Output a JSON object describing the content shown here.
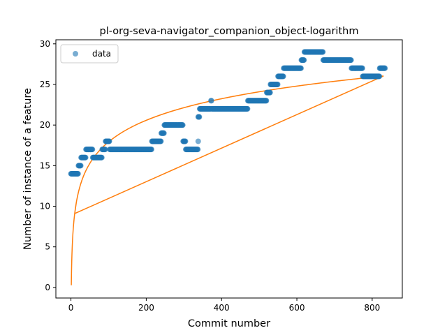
{
  "chart_data": {
    "type": "scatter",
    "title": "pl-org-seva-navigator_companion_object-logarithm",
    "xlabel": "Commit number",
    "ylabel": "Number of instance of a feature",
    "xlim": [
      -40,
      880
    ],
    "ylim": [
      -1.3,
      30.5
    ],
    "xticks": [
      0,
      200,
      400,
      600,
      800
    ],
    "yticks": [
      0,
      5,
      10,
      15,
      20,
      25,
      30
    ],
    "grid": false,
    "legend": {
      "placement": "top-left",
      "entries": [
        "data"
      ]
    },
    "series": [
      {
        "name": "data",
        "kind": "points",
        "color": "#1f77b4",
        "segments": [
          {
            "x0": 0,
            "x1": 20,
            "y": 14
          },
          {
            "x0": 20,
            "x1": 27,
            "y": 15
          },
          {
            "x0": 27,
            "x1": 40,
            "y": 16
          },
          {
            "x0": 40,
            "x1": 58,
            "y": 17
          },
          {
            "x0": 58,
            "x1": 83,
            "y": 16
          },
          {
            "x0": 83,
            "x1": 92,
            "y": 17
          },
          {
            "x0": 92,
            "x1": 103,
            "y": 18
          },
          {
            "x0": 103,
            "x1": 215,
            "y": 17
          },
          {
            "x0": 215,
            "x1": 240,
            "y": 18
          },
          {
            "x0": 240,
            "x1": 248,
            "y": 19
          },
          {
            "x0": 248,
            "x1": 298,
            "y": 20
          },
          {
            "x0": 298,
            "x1": 305,
            "y": 18
          },
          {
            "x0": 305,
            "x1": 338,
            "y": 17
          },
          {
            "x0": 338,
            "x1": 342,
            "y": 21
          },
          {
            "x0": 342,
            "x1": 372,
            "y": 22
          },
          {
            "x0": 372,
            "x1": 374,
            "y": 23
          },
          {
            "x0": 374,
            "x1": 470,
            "y": 22
          },
          {
            "x0": 470,
            "x1": 520,
            "y": 23
          },
          {
            "x0": 520,
            "x1": 530,
            "y": 24
          },
          {
            "x0": 530,
            "x1": 550,
            "y": 25
          },
          {
            "x0": 550,
            "x1": 565,
            "y": 26
          },
          {
            "x0": 565,
            "x1": 612,
            "y": 27
          },
          {
            "x0": 612,
            "x1": 620,
            "y": 28
          },
          {
            "x0": 620,
            "x1": 670,
            "y": 29
          },
          {
            "x0": 670,
            "x1": 745,
            "y": 28
          },
          {
            "x0": 745,
            "x1": 775,
            "y": 27
          },
          {
            "x0": 775,
            "x1": 820,
            "y": 26
          },
          {
            "x0": 820,
            "x1": 835,
            "y": 27
          }
        ],
        "points": [
          {
            "x": 338,
            "y": 18
          },
          {
            "x": 100,
            "y": 18
          },
          {
            "x": 52,
            "y": 17
          }
        ]
      },
      {
        "name": "",
        "kind": "line",
        "color": "#ff7f0e",
        "model": "logarithm",
        "x_range": [
          1,
          830
        ],
        "sample_points": [
          {
            "x": 1,
            "y": 0.2
          },
          {
            "x": 50,
            "y": 15.5
          },
          {
            "x": 200,
            "y": 20.5
          },
          {
            "x": 400,
            "y": 23.2
          },
          {
            "x": 600,
            "y": 24.8
          },
          {
            "x": 830,
            "y": 26.0
          }
        ]
      }
    ]
  }
}
